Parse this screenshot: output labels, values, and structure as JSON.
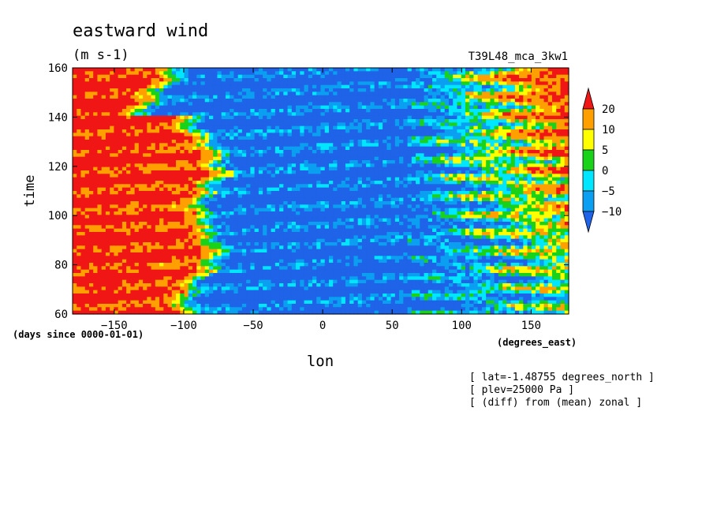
{
  "chart_data": {
    "type": "heatmap",
    "title": "eastward wind",
    "units": "(m s-1)",
    "run_label": "T39L48_mca_3kw1",
    "xlabel": "lon",
    "ylabel": "time",
    "x_units": "(degrees_east)",
    "y_units": "(days since 0000-01-01)",
    "xlim": [
      -180,
      177
    ],
    "ylim": [
      60,
      160
    ],
    "x_ticks": [
      -150,
      -100,
      -50,
      0,
      50,
      100,
      150
    ],
    "y_ticks": [
      60,
      80,
      100,
      120,
      140,
      160
    ],
    "color_levels": [
      -10,
      -5,
      0,
      5,
      10,
      20
    ],
    "color_bins": [
      {
        "range": "< -10",
        "color": "#1f63e8"
      },
      {
        "range": "-10 to -5",
        "color": "#0a9ff0"
      },
      {
        "range": "-5 to 0",
        "color": "#00e6ff"
      },
      {
        "range": "0 to 5",
        "color": "#19d219"
      },
      {
        "range": "5 to 10",
        "color": "#ffff00"
      },
      {
        "range": "10 to 20",
        "color": "#ffa000"
      },
      {
        "range": "> 20",
        "color": "#f01616"
      }
    ],
    "notes": [
      "[ lat=-1.48755 degrees_north ]",
      "[ plev=25000 Pa ]",
      "[ (diff) from (mean) zonal ]"
    ]
  }
}
